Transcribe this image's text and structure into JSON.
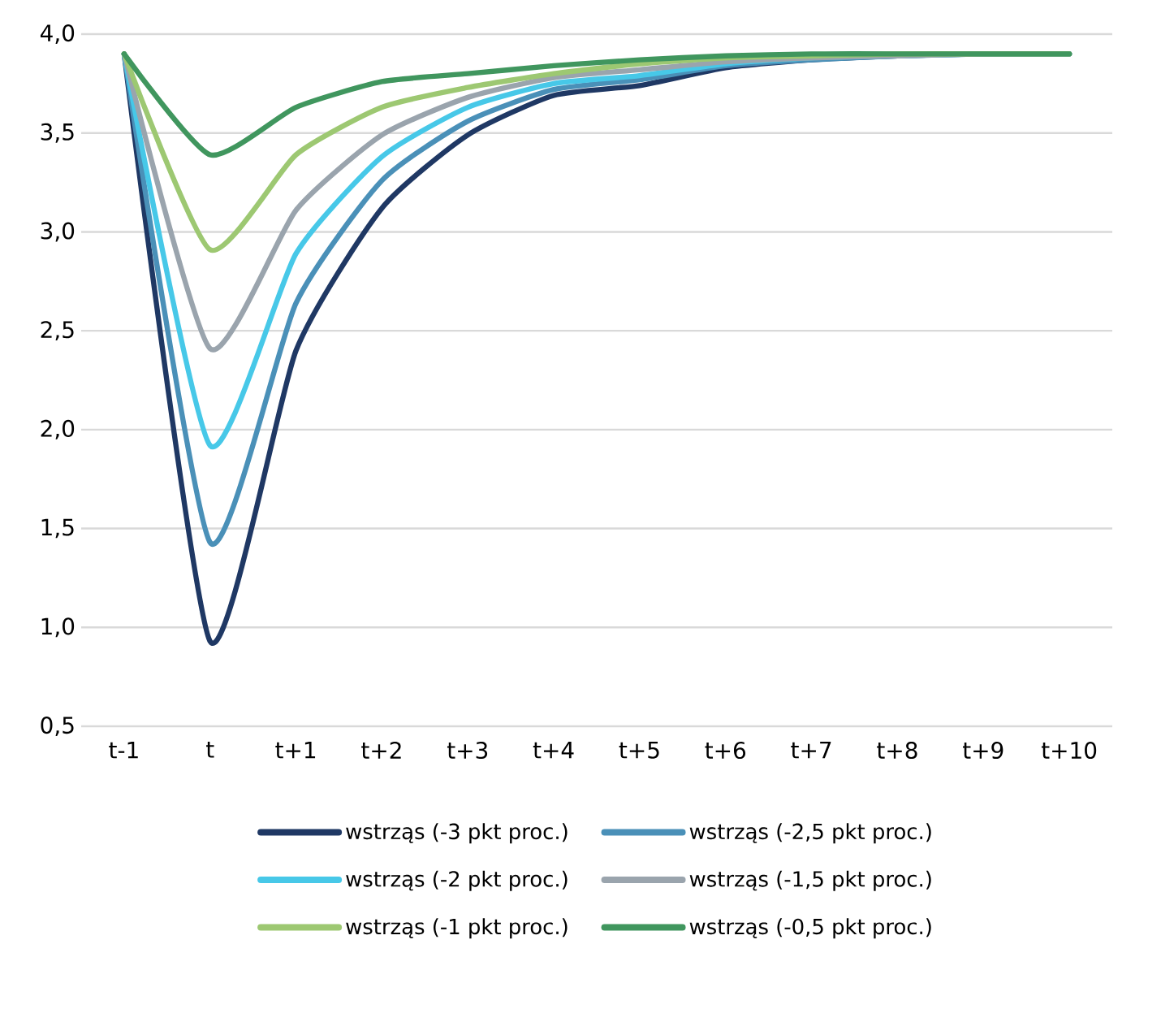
{
  "chart_data": {
    "type": "line",
    "categories": [
      "t-1",
      "t",
      "t+1",
      "t+2",
      "t+3",
      "t+4",
      "t+5",
      "t+6",
      "t+7",
      "t+8",
      "t+9",
      "t+10"
    ],
    "ylim": [
      0.5,
      4.0
    ],
    "yticks": [
      {
        "value": 0.5,
        "label": "0,5"
      },
      {
        "value": 1.0,
        "label": "1,0"
      },
      {
        "value": 1.5,
        "label": "1,5"
      },
      {
        "value": 2.0,
        "label": "2,0"
      },
      {
        "value": 2.5,
        "label": "2,5"
      },
      {
        "value": 3.0,
        "label": "3,0"
      },
      {
        "value": 3.5,
        "label": "3,5"
      },
      {
        "value": 4.0,
        "label": "4,0"
      }
    ],
    "grid": "y",
    "legend": "bottom",
    "marker": "none",
    "line_style": "solid",
    "series": [
      {
        "name": "wstrząs (-3 pkt proc.)",
        "color": "#1f3864",
        "values": [
          3.9,
          0.93,
          2.4,
          3.12,
          3.49,
          3.69,
          3.74,
          3.83,
          3.87,
          3.89,
          3.9,
          3.9
        ]
      },
      {
        "name": "wstrząs (-2,5 pkt proc.)",
        "color": "#4a90b8",
        "values": [
          3.9,
          1.43,
          2.64,
          3.26,
          3.56,
          3.72,
          3.77,
          3.84,
          3.87,
          3.89,
          3.9,
          3.9
        ]
      },
      {
        "name": "wstrząs (-2 pkt proc.)",
        "color": "#47c8e8",
        "values": [
          3.9,
          1.92,
          2.89,
          3.38,
          3.63,
          3.75,
          3.79,
          3.85,
          3.88,
          3.89,
          3.9,
          3.9
        ]
      },
      {
        "name": "wstrząs (-1,5 pkt proc.)",
        "color": "#9aa4ad",
        "values": [
          3.9,
          2.41,
          3.11,
          3.49,
          3.68,
          3.78,
          3.82,
          3.86,
          3.88,
          3.89,
          3.9,
          3.9
        ]
      },
      {
        "name": "wstrząs (-1 pkt proc.)",
        "color": "#9dc872",
        "values": [
          3.9,
          2.91,
          3.39,
          3.63,
          3.73,
          3.8,
          3.85,
          3.88,
          3.89,
          3.9,
          3.9,
          3.9
        ]
      },
      {
        "name": "wstrząs (-0,5 pkt proc.)",
        "color": "#40965e",
        "values": [
          3.9,
          3.39,
          3.63,
          3.76,
          3.8,
          3.84,
          3.87,
          3.89,
          3.9,
          3.9,
          3.9,
          3.9
        ]
      }
    ]
  }
}
